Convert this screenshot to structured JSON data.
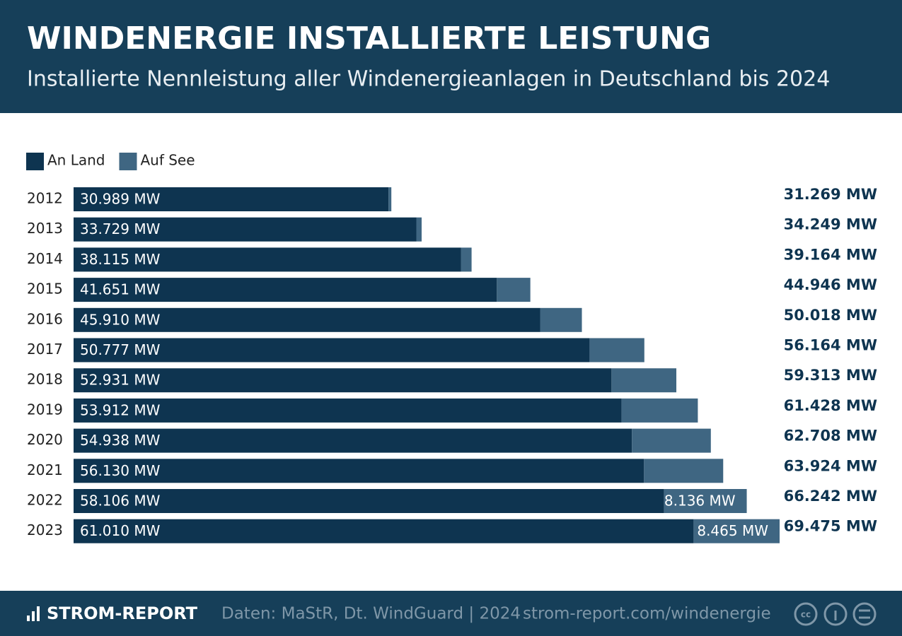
{
  "chart_data": {
    "type": "stacked-barh",
    "title": "WINDENERGIE INSTALLIERTE LEISTUNG",
    "subtitle": "Installierte Nennleistung aller Windenergieanlagen in Deutschland bis 2024",
    "categories": [
      "2012",
      "2013",
      "2014",
      "2015",
      "2016",
      "2017",
      "2018",
      "2019",
      "2020",
      "2021",
      "2022",
      "2023"
    ],
    "series": [
      {
        "name": "An Land",
        "color": "#0e3450",
        "values": [
          30989,
          33729,
          38115,
          41651,
          45910,
          50777,
          52931,
          53912,
          54938,
          56130,
          58106,
          61010
        ],
        "value_labels": [
          "30.989 MW",
          "33.729 MW",
          "38.115 MW",
          "41.651 MW",
          "45.910 MW",
          "50.777 MW",
          "52.931 MW",
          "53.912 MW",
          "54.938 MW",
          "56.130 MW",
          "58.106 MW",
          "61.010 MW"
        ]
      },
      {
        "name": "Auf See",
        "color": "#3f6682",
        "values": [
          280,
          520,
          1049,
          3295,
          4108,
          5387,
          6382,
          7516,
          7770,
          7794,
          8136,
          8465
        ],
        "value_labels": [
          null,
          null,
          null,
          null,
          null,
          null,
          null,
          null,
          null,
          null,
          "8.136 MW",
          "8.465 MW"
        ]
      }
    ],
    "totals": [
      31269,
      34249,
      39164,
      44946,
      50018,
      56164,
      59313,
      61428,
      62708,
      63924,
      66242,
      69475
    ],
    "total_labels": [
      "31.269 MW",
      "34.249 MW",
      "39.164 MW",
      "44.946 MW",
      "50.018 MW",
      "56.164 MW",
      "59.313 MW",
      "61.428 MW",
      "62.708 MW",
      "63.924 MW",
      "66.242 MW",
      "69.475 MW"
    ],
    "legend": "top-left",
    "brand": "STROM-REPORT",
    "source": "Daten: MaStR, Dt. WindGuard | 2024",
    "url": "strom-report.com/windenergie"
  }
}
